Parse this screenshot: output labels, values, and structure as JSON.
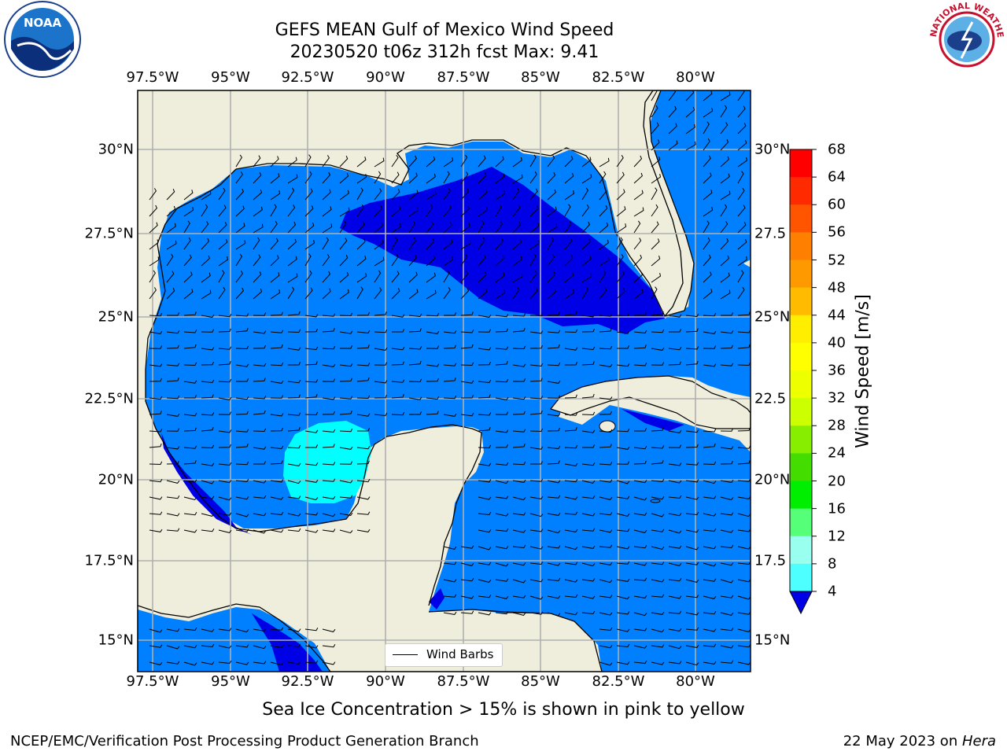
{
  "title": {
    "line1": "GEFS MEAN Gulf of Mexico Wind Speed",
    "line2": "20230520 t06z 312h fcst   Max: 9.41"
  },
  "logos": {
    "left": {
      "name": "noaa-logo",
      "text": "NOAA",
      "ring_text": "NATIONAL OCEANIC AND ATMOSPHERIC ADMINISTRATION · U.S. DEPARTMENT OF COMMERCE"
    },
    "right": {
      "name": "nws-logo",
      "ring_text": "NATIONAL WEATHER SERVICE"
    }
  },
  "map": {
    "longitudes": [
      "97.5°W",
      "95°W",
      "92.5°W",
      "90°W",
      "87.5°W",
      "85°W",
      "82.5°W",
      "80°W"
    ],
    "latitudes_left": [
      "30°N",
      "27.5°N",
      "25°N",
      "22.5°N",
      "20°N",
      "17.5°N",
      "15°N"
    ],
    "latitudes_right": [
      "30°N",
      "27.5",
      "25°N",
      "22.5",
      "20°N",
      "17.5",
      "15°N"
    ],
    "colors": {
      "land": "#efeedc",
      "coast": "#000000",
      "grid": "#b0b0b0",
      "speed_4_8": "#0080ff",
      "speed_below_4": "#0000e6",
      "speed_8_12": "#00ffff",
      "speed_12_16": "#4dffff"
    },
    "legend_label": "Wind Barbs"
  },
  "colorbar": {
    "title": "Wind Speed [m/s]",
    "ticks": [
      "68",
      "64",
      "60",
      "56",
      "52",
      "48",
      "44",
      "40",
      "36",
      "32",
      "28",
      "24",
      "20",
      "16",
      "12",
      "8",
      "4"
    ],
    "colors": [
      "#ff0000",
      "#ff2a00",
      "#ff5500",
      "#ff7f00",
      "#ff9900",
      "#ffbb00",
      "#ffee00",
      "#ffff00",
      "#eeff00",
      "#ccff00",
      "#88ee00",
      "#44dd00",
      "#00ee00",
      "#55ff77",
      "#99ffee",
      "#4dffff",
      "#00ffff",
      "#0080ff"
    ],
    "under_color": "#0000e6"
  },
  "caption": "Sea Ice Concentration > 15% is shown in pink to yellow",
  "footer": {
    "left": "NCEP/EMC/Verification Post Processing Product Generation Branch",
    "right_prefix": "22 May 2023 on ",
    "right_host": "Hera"
  }
}
